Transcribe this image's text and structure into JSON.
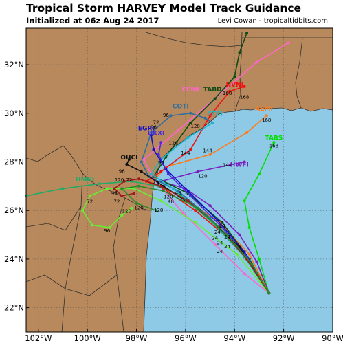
{
  "header": {
    "title": "Tropical Storm HARVEY Model Track Guidance",
    "initialized": "Initialized at 06z Aug 24 2017",
    "credit": "Levi Cowan - tropicaltidbits.com"
  },
  "colors": {
    "land": "#b8895c",
    "water": "#8ec9e6",
    "border": "#2f2f2f",
    "grid": "#555555"
  },
  "map": {
    "lon_range": [
      -102.5,
      -90
    ],
    "lat_range": [
      21,
      33.5
    ],
    "lon_ticks": [
      {
        "value": -102,
        "label": "102°W"
      },
      {
        "value": -100,
        "label": "100°W"
      },
      {
        "value": -98,
        "label": "98°W"
      },
      {
        "value": -96,
        "label": "96°W"
      },
      {
        "value": -94,
        "label": "94°W"
      },
      {
        "value": -92,
        "label": "92°W"
      },
      {
        "value": -90,
        "label": "90°W"
      }
    ],
    "lat_ticks": [
      {
        "value": 22,
        "label": "22°N"
      },
      {
        "value": 24,
        "label": "24°N"
      },
      {
        "value": 26,
        "label": "26°N"
      },
      {
        "value": 28,
        "label": "28°N"
      },
      {
        "value": 30,
        "label": "30°N"
      },
      {
        "value": 32,
        "label": "32°N"
      }
    ]
  },
  "models": [
    {
      "name": "TABS",
      "color": "#00e000",
      "label_at": [
        -92.4,
        28.9
      ],
      "track": [
        [
          -92.6,
          22.6
        ],
        [
          -93.0,
          24.0
        ],
        [
          -93.4,
          25.3
        ],
        [
          -93.6,
          26.4
        ],
        [
          -93.0,
          27.5
        ],
        [
          -92.4,
          28.8
        ]
      ],
      "hours": [
        {
          "text": "168",
          "at": [
            -92.4,
            28.6
          ]
        }
      ]
    },
    {
      "name": "HWFI",
      "color": "#7a1fbf",
      "label_at": [
        -93.8,
        27.8
      ],
      "track": [
        [
          -92.6,
          22.6
        ],
        [
          -93.1,
          23.9
        ],
        [
          -93.8,
          25.0
        ],
        [
          -95.0,
          26.2
        ],
        [
          -96.0,
          26.9
        ],
        [
          -97.0,
          27.2
        ],
        [
          -95.5,
          27.6
        ],
        [
          -93.6,
          28.0
        ]
      ],
      "hours": []
    },
    {
      "name": "AEMI",
      "color": "#ff7a1a",
      "label_at": [
        -92.8,
        30.1
      ],
      "track": [
        [
          -92.6,
          22.6
        ],
        [
          -93.4,
          24.2
        ],
        [
          -94.6,
          25.5
        ],
        [
          -96.2,
          26.6
        ],
        [
          -97.4,
          27.1
        ],
        [
          -96.8,
          27.8
        ],
        [
          -95.0,
          28.3
        ],
        [
          -93.5,
          29.2
        ],
        [
          -92.7,
          29.9
        ]
      ],
      "hours": [
        {
          "text": "168",
          "at": [
            -92.7,
            29.65
          ]
        }
      ]
    },
    {
      "name": "CEMI",
      "color": "#ff66cc",
      "label_at": [
        -95.8,
        30.9
      ],
      "track": [
        [
          -92.6,
          22.6
        ],
        [
          -93.6,
          23.4
        ],
        [
          -94.8,
          24.6
        ],
        [
          -96.1,
          25.9
        ],
        [
          -97.3,
          27.3
        ],
        [
          -97.7,
          28.1
        ],
        [
          -96.3,
          29.3
        ],
        [
          -94.8,
          30.6
        ],
        [
          -93.1,
          32.1
        ],
        [
          -91.8,
          32.9
        ]
      ],
      "hours": []
    },
    {
      "name": "NVNI",
      "color": "#ee1111",
      "label_at": [
        -94.0,
        31.1
      ],
      "track": [
        [
          -92.6,
          22.6
        ],
        [
          -93.3,
          23.8
        ],
        [
          -94.3,
          24.9
        ],
        [
          -95.6,
          26.0
        ],
        [
          -96.9,
          26.9
        ],
        [
          -97.6,
          27.2
        ],
        [
          -97.0,
          27.6
        ],
        [
          -95.8,
          28.5
        ],
        [
          -95.0,
          29.9
        ],
        [
          -94.2,
          30.9
        ],
        [
          -93.6,
          31.1
        ]
      ],
      "hours": [
        {
          "text": "168",
          "at": [
            -93.6,
            30.6
          ]
        }
      ]
    },
    {
      "name": "TABD",
      "color": "#0d4a14",
      "label_at": [
        -94.9,
        30.9
      ],
      "track": [
        [
          -92.6,
          22.6
        ],
        [
          -93.4,
          24.0
        ],
        [
          -94.5,
          25.5
        ],
        [
          -95.9,
          26.7
        ],
        [
          -97.3,
          27.4
        ],
        [
          -96.8,
          28.2
        ],
        [
          -95.8,
          29.6
        ],
        [
          -94.8,
          30.6
        ],
        [
          -94.0,
          31.5
        ],
        [
          -93.8,
          32.5
        ],
        [
          -93.5,
          33.3
        ]
      ],
      "hours": [
        {
          "text": "168",
          "at": [
            -94.3,
            30.75
          ]
        }
      ]
    },
    {
      "name": "COTI",
      "color": "#2e6e9e",
      "label_at": [
        -96.2,
        30.2
      ],
      "track": [
        [
          -92.6,
          22.6
        ],
        [
          -93.6,
          24.1
        ],
        [
          -95.0,
          25.7
        ],
        [
          -96.3,
          26.8
        ],
        [
          -97.5,
          27.4
        ],
        [
          -97.8,
          28.0
        ],
        [
          -97.4,
          29.2
        ],
        [
          -96.6,
          29.9
        ],
        [
          -95.8,
          30.0
        ],
        [
          -95.2,
          29.8
        ],
        [
          -94.9,
          29.6
        ]
      ],
      "hours": [
        {
          "text": "96",
          "at": [
            -96.8,
            29.85
          ]
        },
        {
          "text": "120",
          "at": [
            -95.6,
            29.4
          ]
        }
      ]
    },
    {
      "name": "CTCI",
      "color": "#18b8cc",
      "label_at": [
        -94.8,
        29.9
      ],
      "track": [
        [
          -92.6,
          22.6
        ],
        [
          -93.7,
          24.3
        ],
        [
          -95.3,
          25.9
        ],
        [
          -96.5,
          26.9
        ],
        [
          -97.4,
          27.5
        ],
        [
          -97.0,
          28.1
        ],
        [
          -95.9,
          29.0
        ],
        [
          -94.9,
          29.6
        ]
      ],
      "hours": [
        {
          "text": "144",
          "at": [
            -95.1,
            28.4
          ]
        }
      ]
    },
    {
      "name": "EGRI",
      "color": "#1010cc",
      "label_at": [
        -97.6,
        29.3
      ],
      "track": [
        [
          -92.6,
          22.6
        ],
        [
          -93.6,
          24.3
        ],
        [
          -94.7,
          25.6
        ],
        [
          -95.9,
          26.8
        ],
        [
          -96.8,
          27.7
        ],
        [
          -97.3,
          28.5
        ],
        [
          -97.4,
          29.1
        ]
      ],
      "hours": [
        {
          "text": "120",
          "at": [
            -96.5,
            28.7
          ]
        }
      ]
    },
    {
      "name": "UKXI",
      "color": "#4a2bd6",
      "label_at": [
        -97.2,
        29.1
      ],
      "track": [
        [
          -92.6,
          22.6
        ],
        [
          -93.5,
          24.1
        ],
        [
          -94.6,
          25.4
        ],
        [
          -95.8,
          26.6
        ],
        [
          -96.7,
          27.5
        ],
        [
          -97.1,
          28.3
        ],
        [
          -97.0,
          28.8
        ]
      ],
      "hours": []
    },
    {
      "name": "OHCI",
      "color": "#111111",
      "label_at": [
        -98.3,
        28.1
      ],
      "track": [
        [
          -92.6,
          22.6
        ],
        [
          -93.8,
          24.5
        ],
        [
          -95.4,
          26.0
        ],
        [
          -96.9,
          27.0
        ],
        [
          -97.8,
          27.6
        ],
        [
          -98.4,
          27.9
        ],
        [
          -98.3,
          28.1
        ]
      ],
      "hours": [
        {
          "text": "96",
          "at": [
            -98.6,
            27.55
          ]
        },
        {
          "text": "120",
          "at": [
            -98.7,
            27.2
          ]
        }
      ]
    },
    {
      "name": "HMNI",
      "color": "#22aa66",
      "label_at": [
        -100.1,
        27.2
      ],
      "track": [
        [
          -92.6,
          22.6
        ],
        [
          -93.6,
          24.1
        ],
        [
          -94.9,
          25.5
        ],
        [
          -96.2,
          26.6
        ],
        [
          -97.1,
          27.0
        ],
        [
          -98.2,
          27.2
        ],
        [
          -99.5,
          27.1
        ],
        [
          -101.0,
          26.9
        ],
        [
          -102.5,
          26.6
        ]
      ],
      "hours": [
        {
          "text": "72",
          "at": [
            -98.3,
            27.2
          ]
        }
      ]
    },
    {
      "name": "",
      "color": "#66ee33",
      "label_at": [
        -98.0,
        26.0
      ],
      "track": [
        [
          -92.6,
          22.6
        ],
        [
          -93.9,
          24.2
        ],
        [
          -95.6,
          25.5
        ],
        [
          -97.0,
          26.4
        ],
        [
          -98.1,
          26.9
        ],
        [
          -99.2,
          26.9
        ],
        [
          -99.9,
          26.6
        ],
        [
          -100.2,
          26.0
        ],
        [
          -99.8,
          25.4
        ],
        [
          -99.1,
          25.3
        ],
        [
          -98.6,
          25.8
        ],
        [
          -98.2,
          26.1
        ]
      ],
      "hours": [
        {
          "text": "72",
          "at": [
            -99.9,
            26.3
          ]
        },
        {
          "text": "96",
          "at": [
            -99.2,
            25.1
          ]
        },
        {
          "text": "120",
          "at": [
            -97.9,
            26.05
          ]
        }
      ]
    },
    {
      "name": "",
      "color": "#9b1a1a",
      "label_at": [
        -98.0,
        26.0
      ],
      "track": [
        [
          -92.6,
          22.6
        ],
        [
          -93.5,
          24.0
        ],
        [
          -94.6,
          25.3
        ],
        [
          -95.9,
          26.4
        ],
        [
          -97.0,
          27.0
        ],
        [
          -97.9,
          27.3
        ],
        [
          -98.5,
          27.2
        ],
        [
          -98.9,
          26.9
        ],
        [
          -98.6,
          26.6
        ],
        [
          -98.1,
          26.7
        ]
      ],
      "hours": [
        {
          "text": "48",
          "at": [
            -98.9,
            26.65
          ]
        },
        {
          "text": "72",
          "at": [
            -98.8,
            26.3
          ]
        }
      ]
    },
    {
      "name": "",
      "color": "#2a8a2a",
      "label_at": [
        -98.0,
        26.0
      ],
      "track": [
        [
          -92.6,
          22.6
        ],
        [
          -93.3,
          23.8
        ],
        [
          -94.3,
          25.0
        ],
        [
          -95.5,
          26.1
        ],
        [
          -96.9,
          26.8
        ],
        [
          -97.9,
          27.0
        ],
        [
          -98.6,
          26.9
        ],
        [
          -98.0,
          26.3
        ],
        [
          -97.2,
          26.0
        ]
      ],
      "hours": [
        {
          "text": "120",
          "at": [
            -98.4,
            25.9
          ]
        }
      ]
    }
  ],
  "hour_labels": [
    {
      "text": "72",
      "at": [
        -97.2,
        29.55
      ]
    },
    {
      "text": "96",
      "at": [
        -97.3,
        29.35
      ]
    },
    {
      "text": "144",
      "at": [
        -96.0,
        28.3
      ]
    },
    {
      "text": "120",
      "at": [
        -95.3,
        27.35
      ]
    },
    {
      "text": "144",
      "at": [
        -94.3,
        27.8
      ]
    },
    {
      "text": "96",
      "at": [
        -97.0,
        27.9
      ]
    },
    {
      "text": "48",
      "at": [
        -97.2,
        27.05
      ]
    },
    {
      "text": "48",
      "at": [
        -96.3,
        26.65
      ]
    },
    {
      "text": "120",
      "at": [
        -96.7,
        26.5
      ]
    },
    {
      "text": "48",
      "at": [
        -96.6,
        26.3
      ]
    },
    {
      "text": "120",
      "at": [
        -97.1,
        25.95
      ]
    },
    {
      "text": "24",
      "at": [
        -94.5,
        25.3
      ]
    },
    {
      "text": "24",
      "at": [
        -94.7,
        25.05
      ]
    },
    {
      "text": "24",
      "at": [
        -94.3,
        24.85
      ]
    },
    {
      "text": "24",
      "at": [
        -94.8,
        24.8
      ]
    },
    {
      "text": "24",
      "at": [
        -94.6,
        24.6
      ]
    },
    {
      "text": "24",
      "at": [
        -94.3,
        24.45
      ]
    },
    {
      "text": "24",
      "at": [
        -94.6,
        24.25
      ]
    }
  ]
}
